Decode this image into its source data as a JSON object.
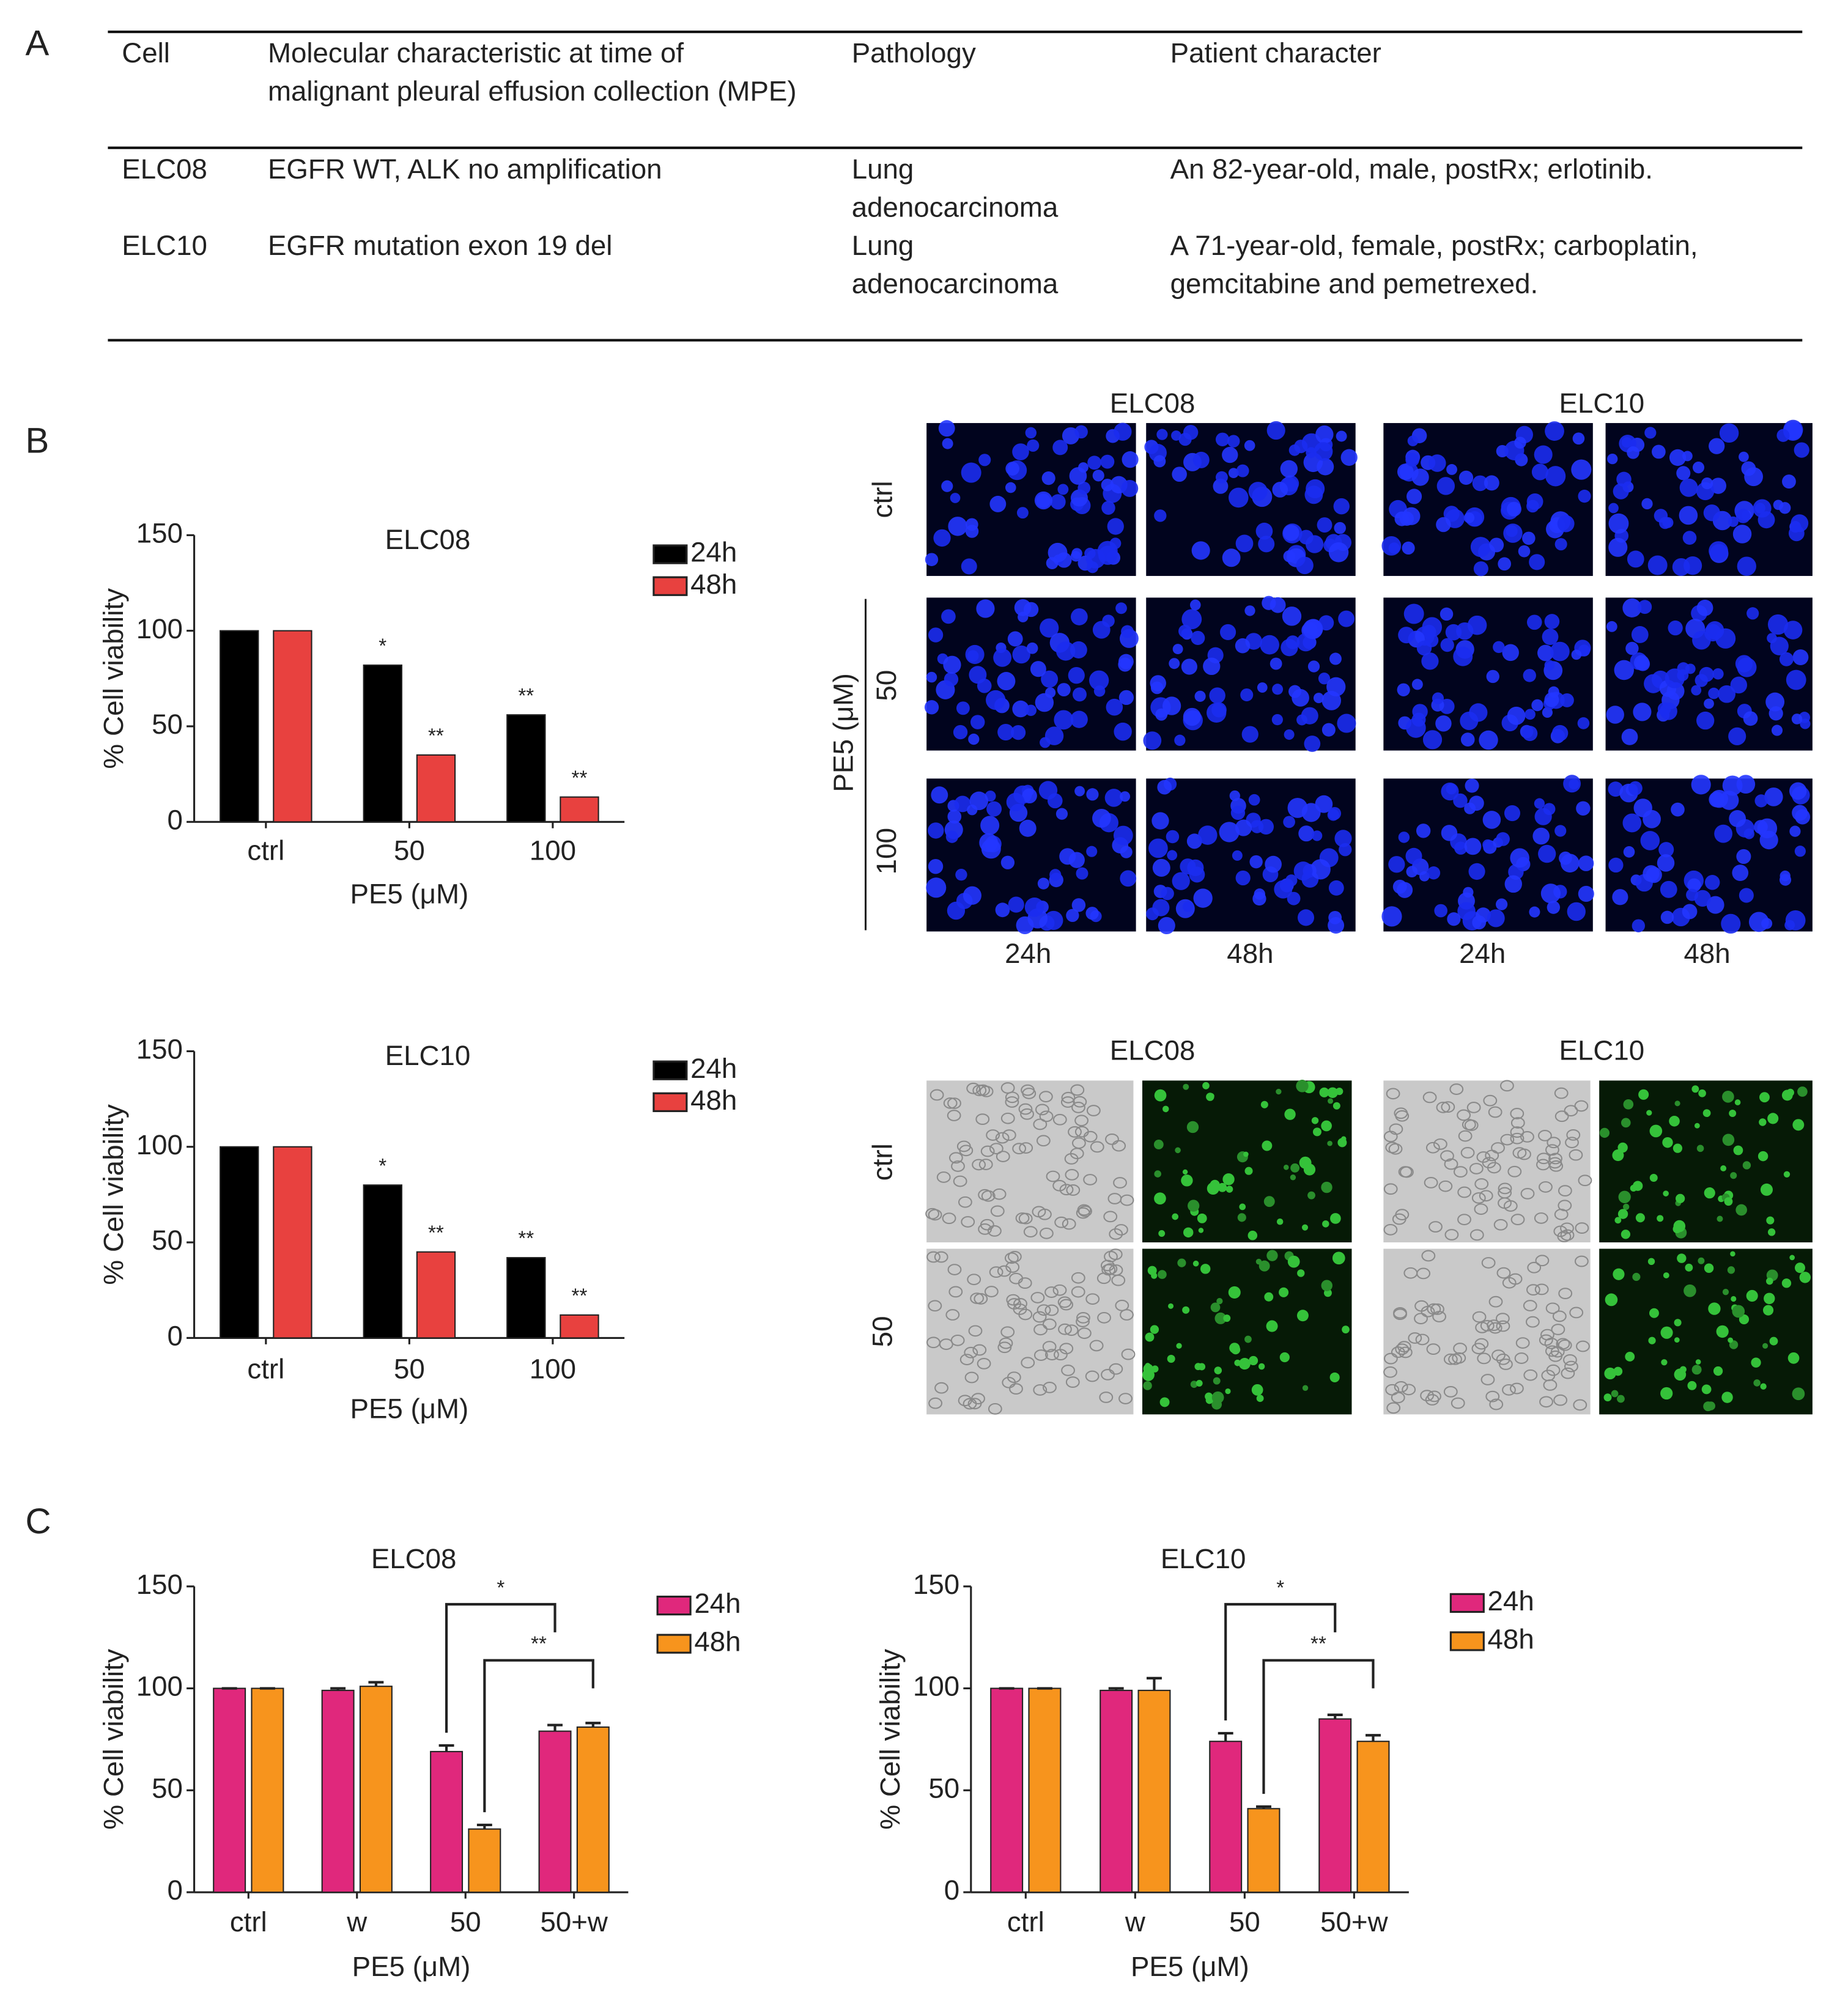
{
  "panel_labels": [
    "A",
    "B",
    "C"
  ],
  "table": {
    "header": [
      "Cell",
      "Molecular characteristic at time of malignant pleural effusion collection (MPE)",
      "Pathology",
      "Patient character"
    ],
    "rows": [
      [
        "ELC08",
        "EGFR WT, ALK no amplification",
        "Lung adenocarcinoma",
        "An 82-year-old, male, postRx; erlotinib."
      ],
      [
        "ELC10",
        "EGFR mutation exon 19 del",
        "Lung adenocarcinoma",
        "A 71-year-old, female, postRx; carboplatin, gemcitabine and pemetrexed."
      ]
    ]
  },
  "images": {
    "fluorescence": {
      "columns": [
        "ELC08",
        "ELC10"
      ],
      "rows_title": "PE5 (μM)",
      "rows": [
        "ctrl",
        "50",
        "100"
      ],
      "time_labels": [
        "24h",
        "48h",
        "24h",
        "48h"
      ]
    },
    "staining": {
      "columns": [
        "ELC08",
        "ELC10"
      ],
      "rows": [
        "ctrl",
        "50"
      ]
    }
  },
  "chart_data": [
    {
      "type": "bar",
      "title": "ELC08",
      "x_label": "PE5 (μM)",
      "y_label": "% Cell viability",
      "categories": [
        "ctrl",
        "50",
        "100"
      ],
      "ylim": [
        0,
        150
      ],
      "yticks": [
        0,
        50,
        100,
        150
      ],
      "series": [
        {
          "name": "24h",
          "color": "#000000",
          "values": [
            100,
            82,
            56
          ],
          "significance": [
            null,
            "*",
            "**"
          ]
        },
        {
          "name": "48h",
          "color": "#e8413f",
          "values": [
            100,
            35,
            13
          ],
          "significance": [
            null,
            "**",
            "**"
          ]
        }
      ]
    },
    {
      "type": "bar",
      "title": "ELC10",
      "x_label": "PE5 (μM)",
      "y_label": "% Cell viability",
      "categories": [
        "ctrl",
        "50",
        "100"
      ],
      "ylim": [
        0,
        150
      ],
      "yticks": [
        0,
        50,
        100,
        150
      ],
      "series": [
        {
          "name": "24h",
          "color": "#000000",
          "values": [
            100,
            80,
            42
          ],
          "significance": [
            null,
            "*",
            "**"
          ]
        },
        {
          "name": "48h",
          "color": "#e8413f",
          "values": [
            100,
            45,
            12
          ],
          "significance": [
            null,
            "**",
            "**"
          ]
        }
      ]
    },
    {
      "type": "bar",
      "title": "ELC08",
      "x_label": "PE5 (μM)",
      "y_label": "% Cell viability",
      "categories": [
        "ctrl",
        "w",
        "50",
        "50+w"
      ],
      "ylim": [
        0,
        150
      ],
      "yticks": [
        0,
        50,
        100,
        150
      ],
      "series": [
        {
          "name": "24h",
          "color": "#e0287c",
          "values": [
            100,
            99,
            69,
            79
          ],
          "errors": [
            0,
            1,
            3,
            3
          ]
        },
        {
          "name": "48h",
          "color": "#f7941d",
          "values": [
            100,
            101,
            31,
            81
          ],
          "errors": [
            0,
            2,
            2,
            2
          ]
        }
      ],
      "comparisons": [
        {
          "label": "*",
          "series": "24h",
          "from": "50",
          "to": "50+w"
        },
        {
          "label": "**",
          "series": "48h",
          "from": "50",
          "to": "50+w"
        }
      ]
    },
    {
      "type": "bar",
      "title": "ELC10",
      "x_label": "PE5 (μM)",
      "y_label": "% Cell viability",
      "categories": [
        "ctrl",
        "w",
        "50",
        "50+w"
      ],
      "ylim": [
        0,
        150
      ],
      "yticks": [
        0,
        50,
        100,
        150
      ],
      "series": [
        {
          "name": "24h",
          "color": "#e0287c",
          "values": [
            100,
            99,
            74,
            85
          ],
          "errors": [
            0,
            1,
            4,
            2
          ]
        },
        {
          "name": "48h",
          "color": "#f7941d",
          "values": [
            100,
            99,
            41,
            74
          ],
          "errors": [
            0,
            6,
            1,
            3
          ]
        }
      ],
      "comparisons": [
        {
          "label": "*",
          "series": "24h",
          "from": "50",
          "to": "50+w"
        },
        {
          "label": "**",
          "series": "48h",
          "from": "50",
          "to": "50+w"
        }
      ]
    }
  ]
}
